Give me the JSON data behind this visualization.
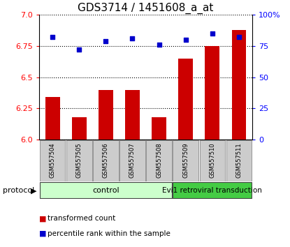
{
  "title": "GDS3714 / 1451608_a_at",
  "samples": [
    "GSM557504",
    "GSM557505",
    "GSM557506",
    "GSM557507",
    "GSM557508",
    "GSM557509",
    "GSM557510",
    "GSM557511"
  ],
  "transformed_counts": [
    6.34,
    6.18,
    6.4,
    6.4,
    6.18,
    6.65,
    6.75,
    6.88
  ],
  "percentile_ranks": [
    82,
    72,
    79,
    81,
    76,
    80,
    85,
    82
  ],
  "ylim_left": [
    6.0,
    7.0
  ],
  "ylim_right": [
    0,
    100
  ],
  "yticks_left": [
    6.0,
    6.25,
    6.5,
    6.75,
    7.0
  ],
  "yticks_right": [
    0,
    25,
    50,
    75,
    100
  ],
  "bar_color": "#cc0000",
  "dot_color": "#0000cc",
  "control_label": "control",
  "treatment_label": "Evi1 retroviral transduction",
  "control_bg": "#ccffcc",
  "treatment_bg": "#44cc44",
  "sample_bg": "#cccccc",
  "protocol_label": "protocol",
  "legend_bar_label": "transformed count",
  "legend_dot_label": "percentile rank within the sample",
  "title_fontsize": 11,
  "tick_fontsize": 8,
  "label_fontsize": 8,
  "sample_fontsize": 6,
  "n_control": 5,
  "n_treatment": 3
}
